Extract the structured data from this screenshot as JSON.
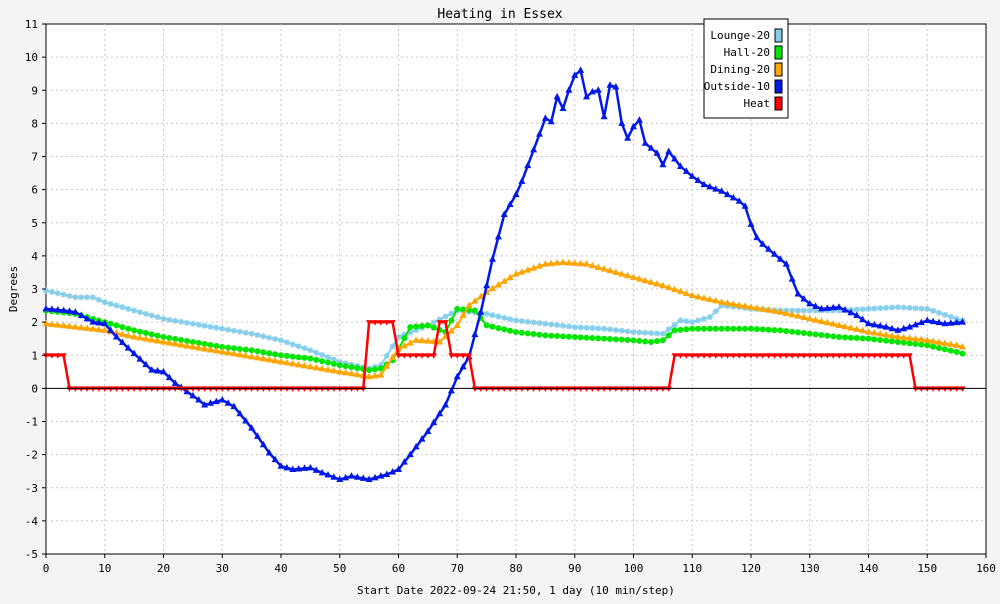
{
  "chart_data": {
    "type": "line",
    "title": "Heating in Essex",
    "xlabel": "Start Date 2022-09-24 21:50, 1 day (10 min/step)",
    "ylabel": "Degrees",
    "xlim": [
      0,
      160
    ],
    "ylim": [
      -5,
      11
    ],
    "x_ticks": [
      0,
      10,
      20,
      30,
      40,
      50,
      60,
      70,
      80,
      90,
      100,
      110,
      120,
      130,
      140,
      150,
      160
    ],
    "y_ticks": [
      -5,
      -4,
      -3,
      -2,
      -1,
      0,
      1,
      2,
      3,
      4,
      5,
      6,
      7,
      8,
      9,
      10,
      11
    ],
    "grid": true,
    "legend_position": "top-right",
    "series": [
      {
        "name": "Lounge-20",
        "color": "#87ceeb",
        "marker": "star",
        "x": [
          0,
          5,
          8,
          10,
          15,
          20,
          25,
          30,
          35,
          40,
          45,
          50,
          55,
          57,
          60,
          65,
          70,
          75,
          80,
          85,
          90,
          95,
          100,
          105,
          108,
          110,
          113,
          115,
          118,
          120,
          125,
          130,
          135,
          140,
          145,
          150,
          155,
          156
        ],
        "y": [
          2.95,
          2.75,
          2.75,
          2.6,
          2.35,
          2.1,
          1.95,
          1.8,
          1.65,
          1.45,
          1.15,
          0.8,
          0.6,
          0.7,
          1.55,
          1.9,
          2.35,
          2.25,
          2.05,
          1.95,
          1.85,
          1.8,
          1.7,
          1.65,
          2.05,
          2.0,
          2.15,
          2.5,
          2.45,
          2.4,
          2.35,
          2.35,
          2.35,
          2.4,
          2.45,
          2.4,
          2.1,
          2.05
        ]
      },
      {
        "name": "Hall-20",
        "color": "#00e600",
        "marker": "circle",
        "x": [
          0,
          5,
          10,
          15,
          20,
          25,
          30,
          35,
          40,
          45,
          50,
          55,
          57,
          59,
          62,
          65,
          68,
          70,
          73,
          75,
          80,
          85,
          90,
          95,
          100,
          103,
          105,
          107,
          110,
          115,
          120,
          125,
          130,
          135,
          140,
          145,
          150,
          155,
          156
        ],
        "y": [
          2.35,
          2.25,
          2.0,
          1.75,
          1.55,
          1.4,
          1.25,
          1.15,
          1.0,
          0.9,
          0.7,
          0.55,
          0.6,
          0.85,
          1.85,
          1.9,
          1.7,
          2.4,
          2.35,
          1.9,
          1.7,
          1.6,
          1.55,
          1.5,
          1.45,
          1.4,
          1.45,
          1.75,
          1.8,
          1.8,
          1.8,
          1.75,
          1.65,
          1.55,
          1.5,
          1.4,
          1.3,
          1.1,
          1.05
        ]
      },
      {
        "name": "Dining-20",
        "color": "#ffa500",
        "marker": "triangle",
        "x": [
          0,
          5,
          10,
          15,
          20,
          25,
          30,
          35,
          40,
          45,
          50,
          55,
          57,
          60,
          63,
          67,
          70,
          72,
          75,
          80,
          85,
          88,
          92,
          95,
          100,
          105,
          110,
          115,
          120,
          125,
          130,
          135,
          140,
          145,
          150,
          155,
          156
        ],
        "y": [
          1.95,
          1.85,
          1.75,
          1.55,
          1.4,
          1.25,
          1.1,
          0.95,
          0.8,
          0.65,
          0.5,
          0.35,
          0.4,
          1.2,
          1.45,
          1.4,
          1.9,
          2.5,
          2.9,
          3.45,
          3.75,
          3.8,
          3.75,
          3.6,
          3.35,
          3.1,
          2.8,
          2.6,
          2.45,
          2.3,
          2.1,
          1.9,
          1.7,
          1.55,
          1.45,
          1.3,
          1.25
        ]
      },
      {
        "name": "Outside-10",
        "color": "#0018e8",
        "marker": "triangle",
        "x": [
          0,
          3,
          5,
          8,
          10,
          12,
          15,
          18,
          20,
          22,
          24,
          26,
          27,
          30,
          32,
          35,
          38,
          40,
          42,
          45,
          47,
          50,
          52,
          55,
          58,
          60,
          62,
          65,
          68,
          70,
          72,
          74,
          76,
          78,
          80,
          81,
          83,
          85,
          86,
          87,
          88,
          89,
          90,
          91,
          92,
          93,
          94,
          95,
          96,
          97,
          98,
          99,
          100,
          101,
          102,
          104,
          105,
          106,
          108,
          110,
          112,
          115,
          118,
          119,
          120,
          121,
          122,
          123,
          124,
          126,
          128,
          130,
          132,
          135,
          138,
          140,
          143,
          145,
          147,
          150,
          153,
          156
        ],
        "y": [
          2.4,
          2.35,
          2.3,
          2.0,
          1.95,
          1.55,
          1.05,
          0.55,
          0.5,
          0.15,
          -0.1,
          -0.35,
          -0.5,
          -0.35,
          -0.55,
          -1.2,
          -1.95,
          -2.35,
          -2.45,
          -2.4,
          -2.55,
          -2.75,
          -2.65,
          -2.75,
          -2.6,
          -2.45,
          -2.0,
          -1.3,
          -0.5,
          0.35,
          0.95,
          2.3,
          3.9,
          5.25,
          5.85,
          6.25,
          7.2,
          8.15,
          8.05,
          8.8,
          8.45,
          9.0,
          9.45,
          9.6,
          8.8,
          8.95,
          9.0,
          8.2,
          9.15,
          9.1,
          8.0,
          7.55,
          7.9,
          8.1,
          7.4,
          7.1,
          6.75,
          7.15,
          6.7,
          6.4,
          6.15,
          5.95,
          5.65,
          5.5,
          4.95,
          4.55,
          4.35,
          4.2,
          4.05,
          3.75,
          2.85,
          2.55,
          2.4,
          2.45,
          2.2,
          1.95,
          1.85,
          1.75,
          1.85,
          2.05,
          1.95,
          2.0
        ]
      },
      {
        "name": "Heat",
        "color": "#ff0000",
        "marker": "triangle-down",
        "x": [
          0,
          3,
          4,
          54,
          55,
          59,
          60,
          66,
          67,
          68,
          69,
          72,
          73,
          106,
          107,
          147,
          148,
          156
        ],
        "y": [
          1,
          1,
          0,
          0,
          2,
          2,
          1,
          1,
          2,
          2,
          1,
          1,
          0,
          0,
          1,
          1,
          0,
          0
        ]
      }
    ]
  }
}
